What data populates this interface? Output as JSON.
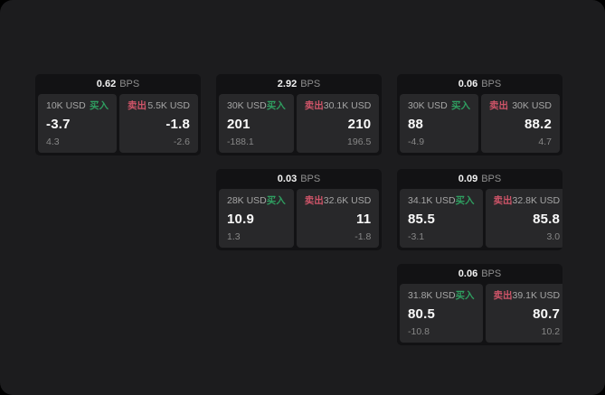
{
  "unit_label": "BPS",
  "buy_label": "买入",
  "sell_label": "卖出",
  "colors": {
    "surface_background": "#1c1c1e",
    "card_background": "#121214",
    "panel_background": "#28282a",
    "buy_accent": "#2f9e60",
    "sell_accent": "#cd5468",
    "primary_text": "#fafafa",
    "muted_text": "#8f8f8f"
  },
  "cards": [
    {
      "bps": "0.62",
      "buy": {
        "amount": "10K USD",
        "price": "-3.7",
        "delta": "4.3"
      },
      "sell": {
        "amount": "5.5K USD",
        "price": "-1.8",
        "delta": "-2.6"
      }
    },
    {
      "bps": "2.92",
      "buy": {
        "amount": "30K USD",
        "price": "201",
        "delta": "-188.1"
      },
      "sell": {
        "amount": "30.1K USD",
        "price": "210",
        "delta": "196.5"
      }
    },
    {
      "bps": "0.06",
      "buy": {
        "amount": "30K USD",
        "price": "88",
        "delta": "-4.9"
      },
      "sell": {
        "amount": "30K USD",
        "price": "88.2",
        "delta": "4.7"
      }
    },
    {
      "bps": "0.03",
      "buy": {
        "amount": "28K USD",
        "price": "10.9",
        "delta": "1.3"
      },
      "sell": {
        "amount": "32.6K USD",
        "price": "11",
        "delta": "-1.8"
      }
    },
    {
      "bps": "0.09",
      "buy": {
        "amount": "34.1K USD",
        "price": "85.5",
        "delta": "-3.1"
      },
      "sell": {
        "amount": "32.8K USD",
        "price": "85.8",
        "delta": "3.0"
      }
    },
    {
      "bps": "0.06",
      "buy": {
        "amount": "31.8K USD",
        "price": "80.5",
        "delta": "-10.8"
      },
      "sell": {
        "amount": "39.1K USD",
        "price": "80.7",
        "delta": "10.2"
      }
    }
  ]
}
